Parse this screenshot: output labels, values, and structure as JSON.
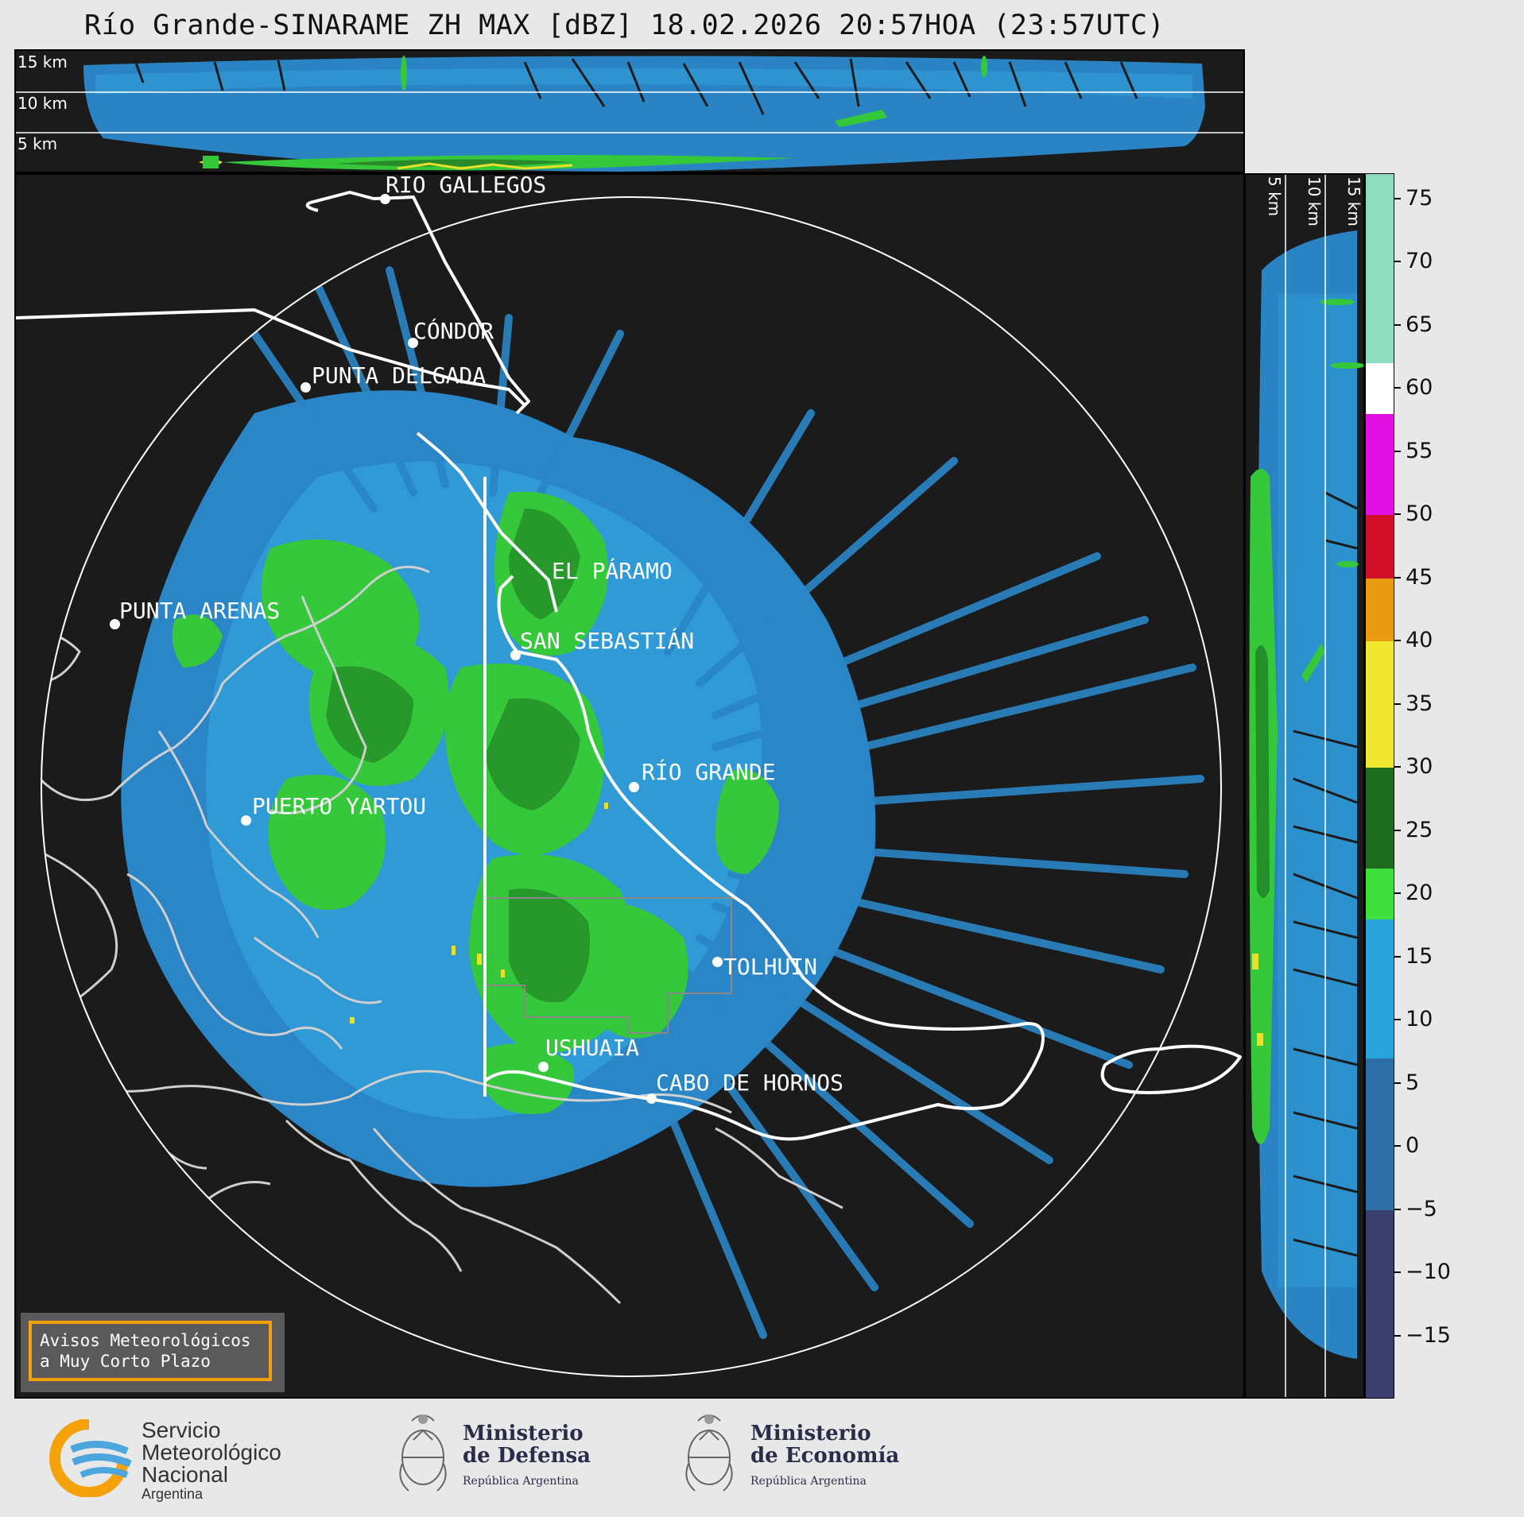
{
  "title": "Río Grande-SINARAME ZH MAX [dBZ] 18.02.2026 20:57HOA (23:57UTC)",
  "height_labels": [
    "15 km",
    "10 km",
    "5 km"
  ],
  "cities": [
    {
      "name": "RÍO GALLEGOS"
    },
    {
      "name": "CÓNDOR"
    },
    {
      "name": "PUNTA DELGADA"
    },
    {
      "name": "EL PÁRAMO"
    },
    {
      "name": "PUNTA ARENAS"
    },
    {
      "name": "SAN SEBASTIÁN"
    },
    {
      "name": "RÍO GRANDE"
    },
    {
      "name": "PUERTO YARTOU"
    },
    {
      "name": "TOLHUIN"
    },
    {
      "name": "USHUAIA"
    },
    {
      "name": "CABO DE HORNOS"
    }
  ],
  "colorbar": {
    "unit": "dBZ",
    "tick_labels": [
      "75",
      "70",
      "65",
      "60",
      "55",
      "50",
      "45",
      "40",
      "35",
      "30",
      "25",
      "20",
      "15",
      "10",
      "5",
      "0",
      "−5",
      "−10",
      "−15"
    ],
    "range": [
      -20,
      77
    ],
    "colors": {
      "very_low": "#3b3f6e",
      "low": "#2e6fa8",
      "moderate": "#2aa3d8",
      "light_green": "#3de03d",
      "dark_green": "#1d6b1d",
      "yellow": "#f0e830",
      "orange": "#e89a10",
      "red": "#d0102a",
      "magenta": "#e010e0",
      "white": "#ffffff",
      "mint": "#8ddcc0"
    }
  },
  "aviso": {
    "line1": "Avisos Meteorológicos",
    "line2": "a Muy Corto Plazo"
  },
  "logos": {
    "smn": {
      "line1": "Servicio",
      "line2": "Meteorológico",
      "line3": "Nacional",
      "line4": "Argentina"
    },
    "defensa": {
      "line1": "Ministerio",
      "line2": "de Defensa",
      "line3": "República Argentina"
    },
    "economia": {
      "line1": "Ministerio",
      "line2": "de Economía",
      "line3": "República Argentina"
    }
  }
}
